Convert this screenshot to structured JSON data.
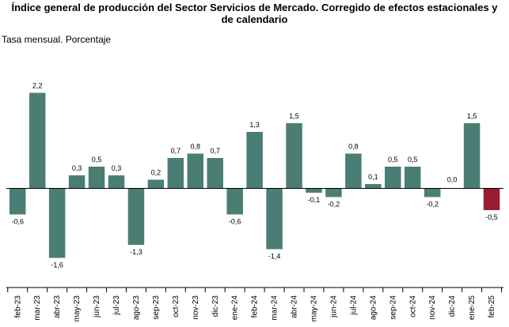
{
  "chart_data": {
    "type": "bar",
    "title_line1": "Índice general de producción del Sector Servicios de Mercado. Corregido de efectos estacionales y",
    "title_line2": "de calendario",
    "subtitle": "Tasa mensual. Porcentaje",
    "categories": [
      "feb-23",
      "mar-23",
      "abr-23",
      "may-23",
      "jun-23",
      "jul-23",
      "ago-23",
      "sep-23",
      "oct-23",
      "nov-23",
      "dic-23",
      "ene-24",
      "feb-24",
      "mar-24",
      "abr-24",
      "may-24",
      "jun-24",
      "jul-24",
      "ago-24",
      "sep-24",
      "oct-24",
      "nov-24",
      "dic-24",
      "ene-25",
      "feb-25"
    ],
    "values": [
      -0.6,
      2.2,
      -1.6,
      0.3,
      0.5,
      0.3,
      -1.3,
      0.2,
      0.7,
      0.8,
      0.7,
      -0.6,
      1.3,
      -1.4,
      1.5,
      -0.1,
      -0.2,
      0.8,
      0.1,
      0.5,
      0.5,
      -0.2,
      0.0,
      1.5,
      -0.5
    ],
    "labels": [
      "-0,6",
      "2,2",
      "-1,6",
      "0,3",
      "0,5",
      "0,3",
      "-1,3",
      "0,2",
      "0,7",
      "0,8",
      "0,7",
      "-0,6",
      "1,3",
      "-1,4",
      "1,5",
      "-0,1",
      "-0,2",
      "0,8",
      "0,1",
      "0,5",
      "0,5",
      "-0,2",
      "0,0",
      "1,5",
      "-0,5"
    ],
    "colors": {
      "default": "#4a7e74",
      "highlight": "#9b1b30"
    },
    "highlight_index": 24
  }
}
